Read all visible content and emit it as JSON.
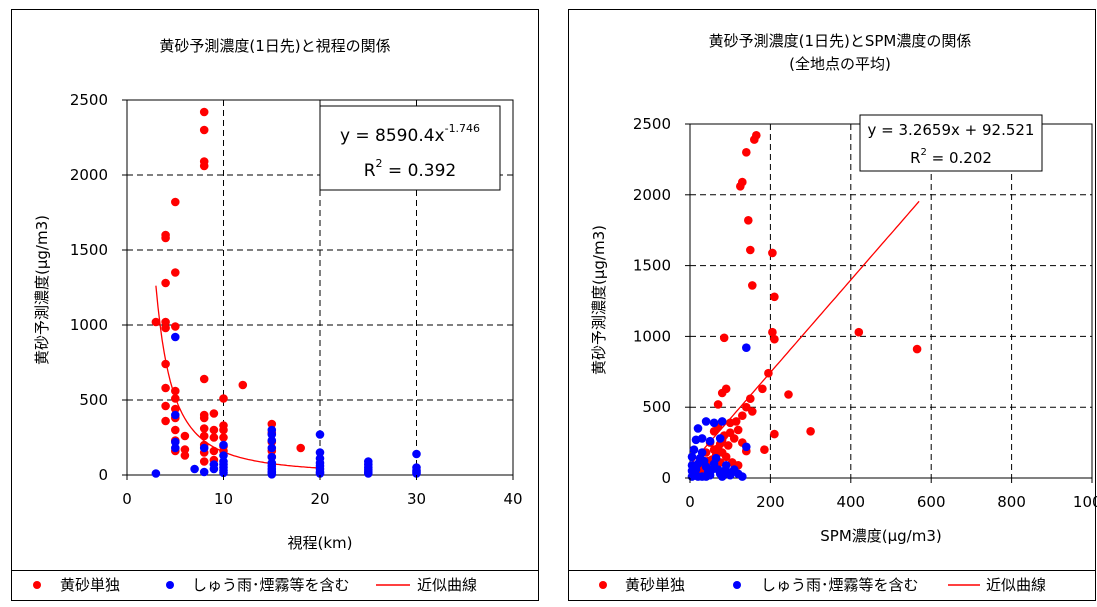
{
  "charts": [
    {
      "title": "黄砂予測濃度(1日先)と視程の関係",
      "subtitle": "",
      "equation_main": "y = 8590.4x",
      "equation_exp": "-1.746",
      "r2_main": "R",
      "r2_sup": "2",
      "r2_value": " = 0.392",
      "legend": {
        "dust_only": "黄砂単独",
        "mixed": "しゅう雨･煙霧等を含む",
        "fit": "近似曲線"
      }
    },
    {
      "title": "黄砂予測濃度(1日先)とSPM濃度の関係",
      "subtitle": "(全地点の平均)",
      "equation_main": "y = 3.2659x + 92.521",
      "equation_exp": "",
      "r2_main": "R",
      "r2_sup": "2",
      "r2_value": " = 0.202",
      "legend": {
        "dust_only": "黄砂単独",
        "mixed": "しゅう雨･煙霧等を含む",
        "fit": "近似曲線"
      }
    }
  ],
  "colors": {
    "dust_only": "#ff0000",
    "mixed": "#0000ff",
    "fit": "#ff0000",
    "grid": "#000000",
    "plot_bg": "#ffffff"
  },
  "chart_data": [
    {
      "type": "scatter",
      "title": "黄砂予測濃度(1日先)と視程の関係",
      "xlabel": "視程(km)",
      "ylabel": "黄砂予測濃度(μg/m3)",
      "xlim": [
        0,
        40
      ],
      "ylim": [
        0,
        2500
      ],
      "xticks": [
        0,
        10,
        20,
        30,
        40
      ],
      "yticks": [
        0,
        500,
        1000,
        1500,
        2000,
        2500
      ],
      "grid": true,
      "legend_position": "bottom",
      "fit": {
        "type": "power",
        "a": 8590.4,
        "b": -1.746,
        "xrange": [
          3,
          20
        ]
      },
      "series": [
        {
          "name": "黄砂単独",
          "points": [
            [
              3,
              1020
            ],
            [
              4,
              1020
            ],
            [
              4,
              980
            ],
            [
              4,
              1600
            ],
            [
              4,
              1580
            ],
            [
              4,
              1280
            ],
            [
              4,
              740
            ],
            [
              4,
              580
            ],
            [
              4,
              460
            ],
            [
              4,
              360
            ],
            [
              5,
              1820
            ],
            [
              5,
              1350
            ],
            [
              5,
              990
            ],
            [
              5,
              560
            ],
            [
              5,
              510
            ],
            [
              5,
              440
            ],
            [
              5,
              380
            ],
            [
              5,
              300
            ],
            [
              5,
              230
            ],
            [
              5,
              160
            ],
            [
              6,
              260
            ],
            [
              6,
              170
            ],
            [
              6,
              130
            ],
            [
              8,
              2420
            ],
            [
              8,
              2300
            ],
            [
              8,
              2090
            ],
            [
              8,
              2060
            ],
            [
              8,
              640
            ],
            [
              8,
              400
            ],
            [
              8,
              380
            ],
            [
              8,
              310
            ],
            [
              8,
              260
            ],
            [
              8,
              200
            ],
            [
              8,
              150
            ],
            [
              8,
              90
            ],
            [
              9,
              410
            ],
            [
              9,
              300
            ],
            [
              9,
              250
            ],
            [
              9,
              160
            ],
            [
              9,
              100
            ],
            [
              10,
              510
            ],
            [
              10,
              330
            ],
            [
              10,
              300
            ],
            [
              10,
              250
            ],
            [
              10,
              190
            ],
            [
              10,
              160
            ],
            [
              12,
              600
            ],
            [
              15,
              340
            ],
            [
              15,
              280
            ],
            [
              15,
              220
            ],
            [
              15,
              160
            ],
            [
              15,
              120
            ],
            [
              18,
              180
            ]
          ]
        },
        {
          "name": "しゅう雨･煙霧等を含む",
          "points": [
            [
              3,
              10
            ],
            [
              5,
              920
            ],
            [
              5,
              400
            ],
            [
              5,
              220
            ],
            [
              5,
              180
            ],
            [
              7,
              40
            ],
            [
              8,
              180
            ],
            [
              8,
              20
            ],
            [
              9,
              70
            ],
            [
              9,
              40
            ],
            [
              10,
              200
            ],
            [
              10,
              130
            ],
            [
              10,
              90
            ],
            [
              10,
              70
            ],
            [
              10,
              50
            ],
            [
              10,
              30
            ],
            [
              10,
              15
            ],
            [
              15,
              300
            ],
            [
              15,
              270
            ],
            [
              15,
              230
            ],
            [
              15,
              180
            ],
            [
              15,
              120
            ],
            [
              15,
              80
            ],
            [
              15,
              60
            ],
            [
              15,
              40
            ],
            [
              15,
              25
            ],
            [
              15,
              15
            ],
            [
              15,
              5
            ],
            [
              20,
              270
            ],
            [
              20,
              150
            ],
            [
              20,
              110
            ],
            [
              20,
              80
            ],
            [
              20,
              60
            ],
            [
              20,
              40
            ],
            [
              20,
              20
            ],
            [
              20,
              10
            ],
            [
              25,
              90
            ],
            [
              25,
              70
            ],
            [
              25,
              50
            ],
            [
              25,
              35
            ],
            [
              25,
              20
            ],
            [
              25,
              10
            ],
            [
              30,
              140
            ],
            [
              30,
              50
            ],
            [
              30,
              30
            ],
            [
              30,
              20
            ],
            [
              30,
              10
            ]
          ]
        }
      ]
    },
    {
      "type": "scatter",
      "title": "黄砂予測濃度(1日先)とSPM濃度の関係",
      "subtitle": "(全地点の平均)",
      "xlabel": "SPM濃度(μg/m3)",
      "ylabel": "黄砂予測濃度(μg/m3)",
      "xlim": [
        0,
        1000
      ],
      "ylim": [
        0,
        2500
      ],
      "xticks": [
        0,
        200,
        400,
        600,
        800,
        1000
      ],
      "yticks": [
        0,
        500,
        1000,
        1500,
        2000,
        2500
      ],
      "grid": true,
      "legend_position": "bottom",
      "fit": {
        "type": "linear",
        "slope": 3.2659,
        "intercept": 92.521,
        "xrange": [
          0,
          570
        ]
      },
      "series": [
        {
          "name": "黄砂単独",
          "points": [
            [
              165,
              2420
            ],
            [
              160,
              2390
            ],
            [
              140,
              2300
            ],
            [
              130,
              2090
            ],
            [
              125,
              2060
            ],
            [
              145,
              1820
            ],
            [
              150,
              1610
            ],
            [
              205,
              1590
            ],
            [
              155,
              1360
            ],
            [
              210,
              1280
            ],
            [
              205,
              1030
            ],
            [
              210,
              980
            ],
            [
              420,
              1030
            ],
            [
              565,
              910
            ],
            [
              85,
              990
            ],
            [
              195,
              740
            ],
            [
              245,
              590
            ],
            [
              180,
              630
            ],
            [
              300,
              330
            ],
            [
              210,
              310
            ],
            [
              80,
              600
            ],
            [
              90,
              630
            ],
            [
              70,
              520
            ],
            [
              150,
              560
            ],
            [
              140,
              500
            ],
            [
              155,
              470
            ],
            [
              130,
              440
            ],
            [
              115,
              400
            ],
            [
              100,
              390
            ],
            [
              120,
              340
            ],
            [
              100,
              320
            ],
            [
              85,
              300
            ],
            [
              80,
              270
            ],
            [
              75,
              240
            ],
            [
              70,
              210
            ],
            [
              60,
              200
            ],
            [
              65,
              160
            ],
            [
              55,
              130
            ],
            [
              45,
              120
            ],
            [
              40,
              90
            ],
            [
              35,
              70
            ],
            [
              30,
              60
            ],
            [
              25,
              50
            ],
            [
              20,
              40
            ],
            [
              15,
              30
            ],
            [
              10,
              20
            ],
            [
              80,
              180
            ],
            [
              90,
              150
            ],
            [
              105,
              110
            ],
            [
              120,
              90
            ],
            [
              130,
              250
            ],
            [
              140,
              190
            ],
            [
              60,
              330
            ],
            [
              70,
              360
            ],
            [
              50,
              250
            ],
            [
              40,
              180
            ],
            [
              185,
              200
            ],
            [
              110,
              280
            ],
            [
              95,
              230
            ],
            [
              75,
              110
            ]
          ]
        },
        {
          "name": "しゅう雨･煙霧等を含む",
          "points": [
            [
              80,
              400
            ],
            [
              60,
              390
            ],
            [
              40,
              400
            ],
            [
              20,
              350
            ],
            [
              140,
              920
            ],
            [
              140,
              220
            ],
            [
              75,
              280
            ],
            [
              50,
              260
            ],
            [
              30,
              280
            ],
            [
              15,
              270
            ],
            [
              10,
              200
            ],
            [
              5,
              150
            ],
            [
              5,
              90
            ],
            [
              5,
              50
            ],
            [
              5,
              10
            ],
            [
              10,
              30
            ],
            [
              15,
              60
            ],
            [
              20,
              100
            ],
            [
              25,
              140
            ],
            [
              30,
              180
            ],
            [
              35,
              120
            ],
            [
              40,
              80
            ],
            [
              45,
              40
            ],
            [
              50,
              20
            ],
            [
              55,
              60
            ],
            [
              60,
              100
            ],
            [
              65,
              140
            ],
            [
              70,
              60
            ],
            [
              75,
              30
            ],
            [
              80,
              10
            ],
            [
              85,
              50
            ],
            [
              90,
              90
            ],
            [
              95,
              40
            ],
            [
              100,
              20
            ],
            [
              110,
              60
            ],
            [
              120,
              30
            ],
            [
              130,
              10
            ],
            [
              20,
              10
            ],
            [
              30,
              10
            ],
            [
              40,
              10
            ]
          ]
        }
      ]
    }
  ]
}
